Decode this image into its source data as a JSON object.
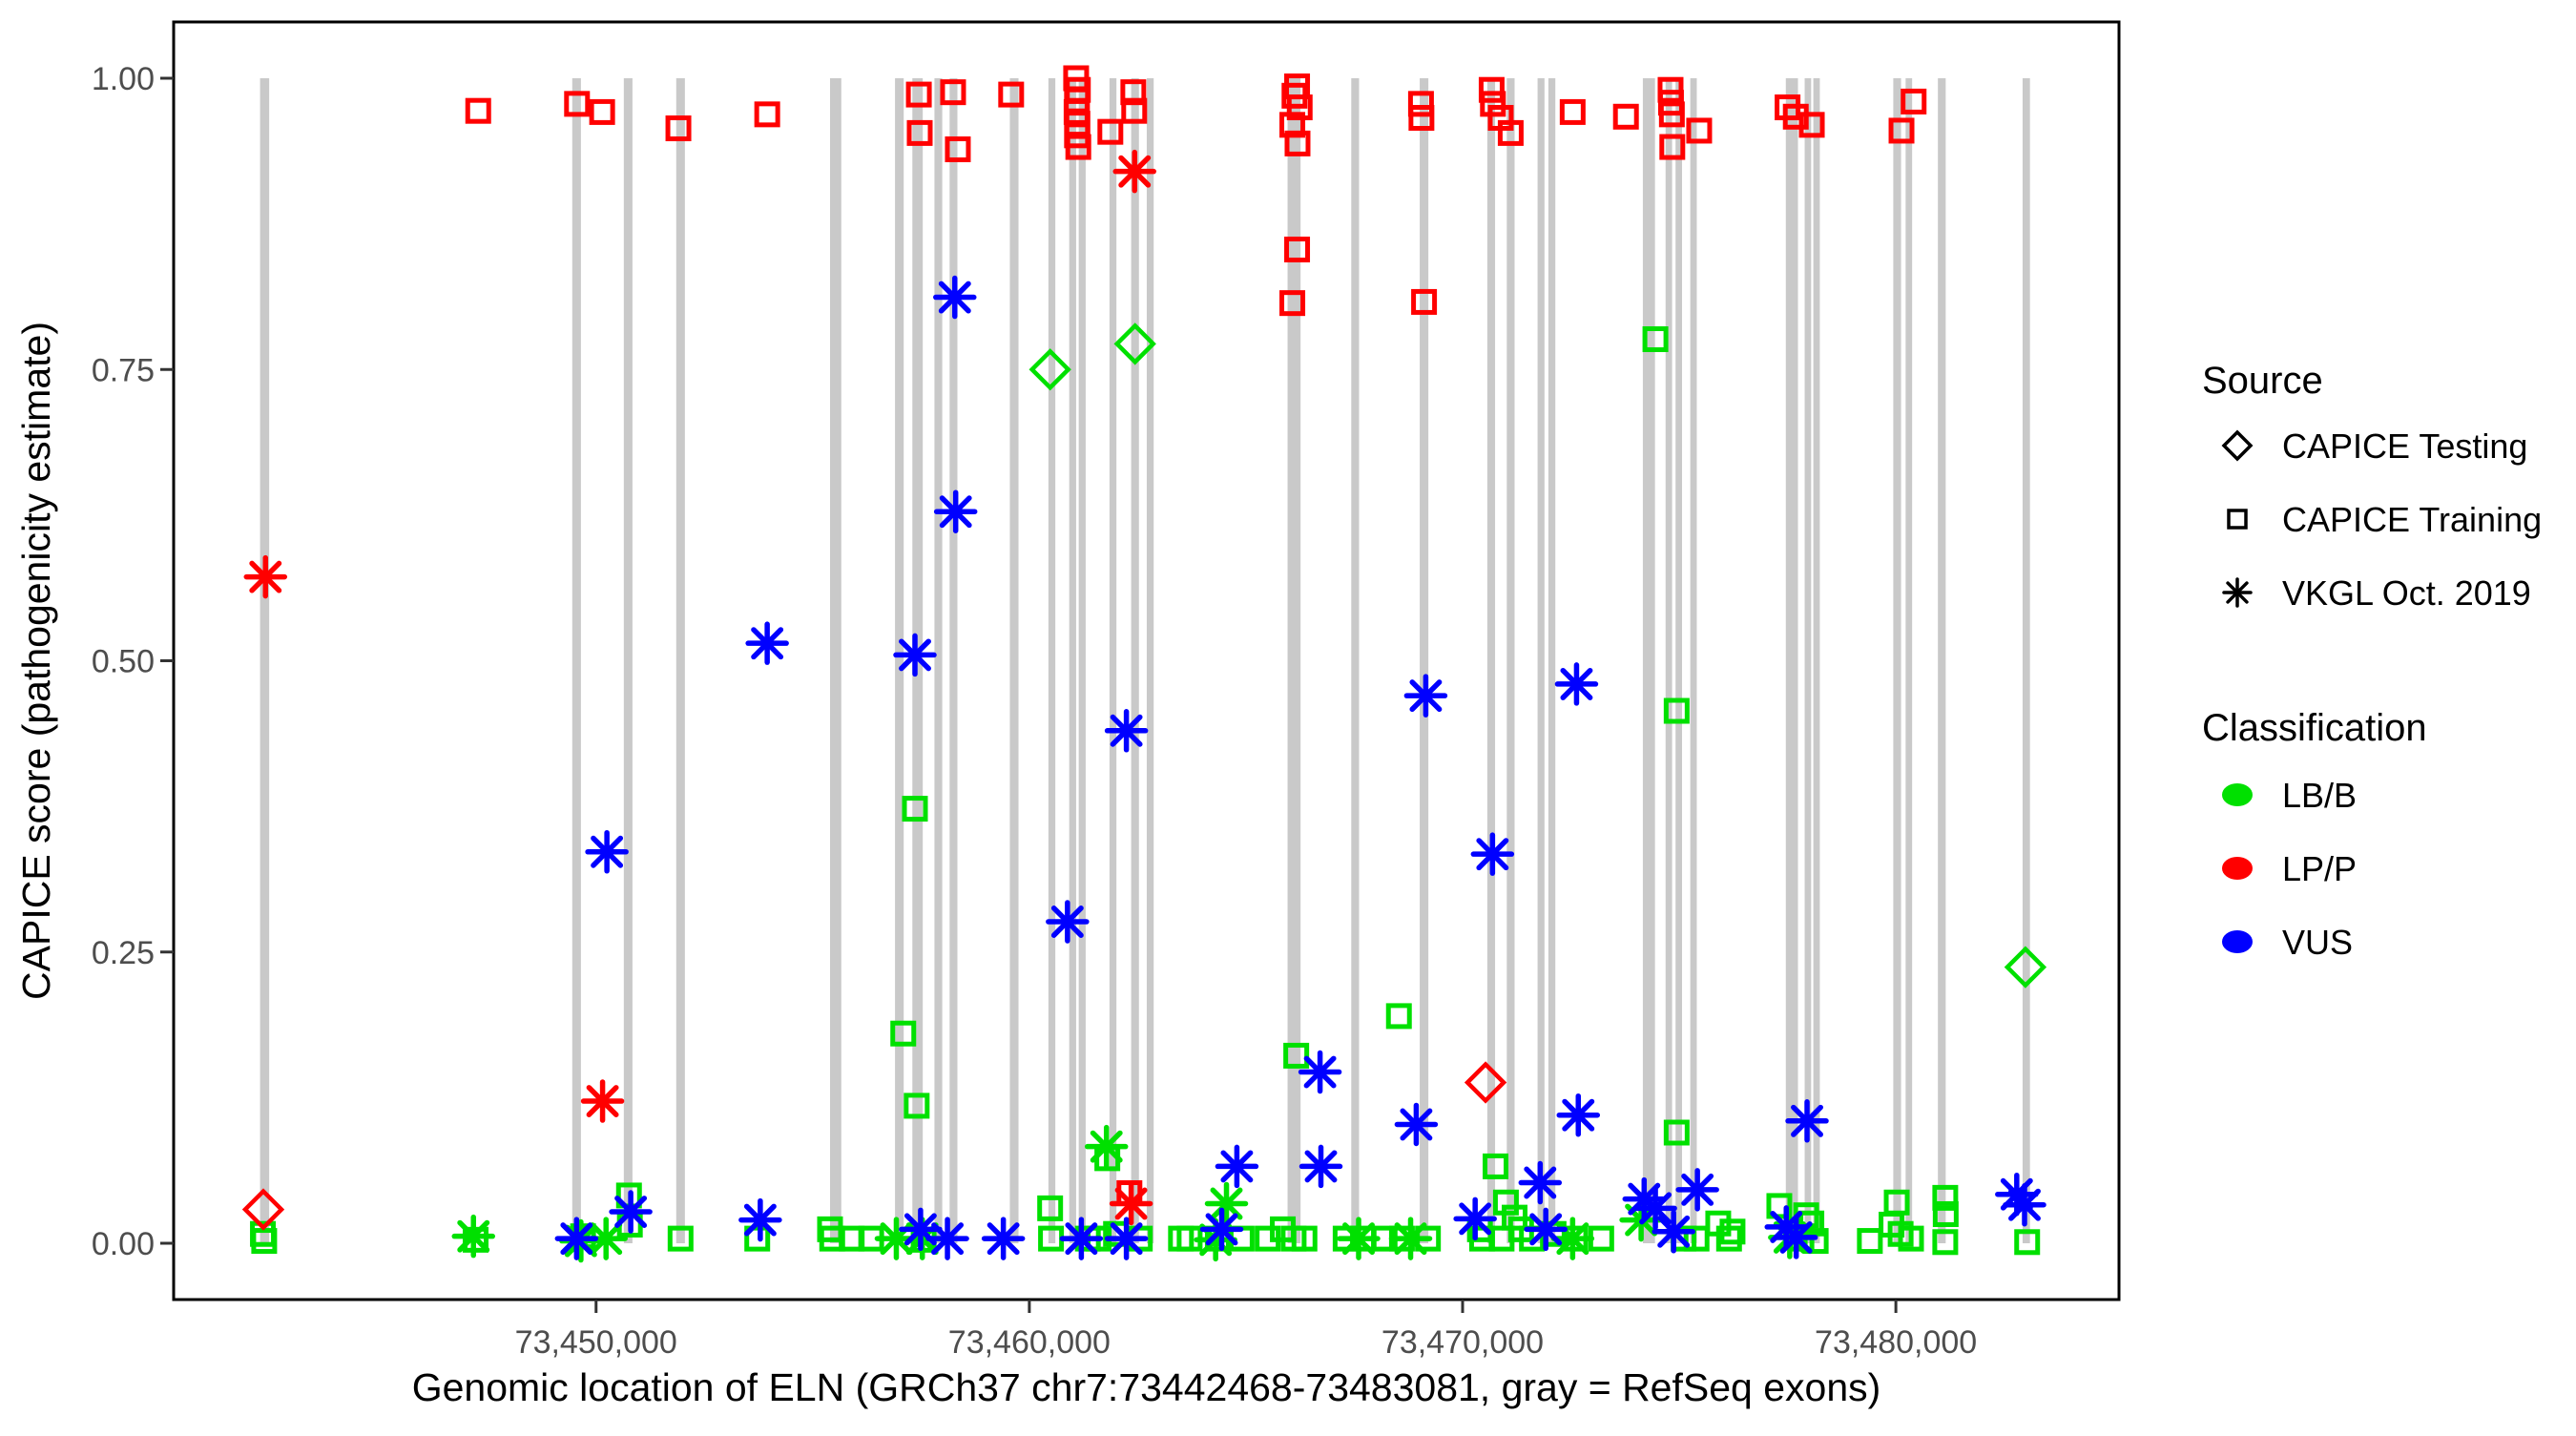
{
  "page": {
    "background": "#FFFFFF"
  },
  "style": {
    "axis_text_color": "#4D4D4D",
    "axis_title_color": "#000000",
    "exon_color": "#C9C9C9",
    "panel_border_color": "#000000",
    "legend_text_color": "#000000"
  },
  "legend": {
    "source": {
      "title": "Source",
      "items": [
        {
          "shape": "diamond",
          "label": "CAPICE Testing"
        },
        {
          "shape": "square",
          "label": "CAPICE Training"
        },
        {
          "shape": "asterisk",
          "label": "VKGL Oct. 2019"
        }
      ]
    },
    "classification": {
      "title": "Classification",
      "items": [
        {
          "label": "LB/B",
          "color": "#00E000"
        },
        {
          "label": "LP/P",
          "color": "#FF0000"
        },
        {
          "label": "VUS",
          "color": "#0000FF"
        }
      ]
    }
  },
  "chart_data": {
    "type": "scatter",
    "title": "",
    "xlabel": "Genomic location of ELN (GRCh37 chr7:73442468-73483081, gray = RefSeq exons)",
    "ylabel": "CAPICE score (pathogenicity estimate)",
    "x_domain": [
      73440250,
      73485150
    ],
    "y_domain": [
      0,
      1
    ],
    "grid": "off",
    "legend_position": "right",
    "x_ticks": [
      {
        "value": 73450000,
        "label": "73,450,000"
      },
      {
        "value": 73460000,
        "label": "73,460,000"
      },
      {
        "value": 73470000,
        "label": "73,470,000"
      },
      {
        "value": 73480000,
        "label": "73,480,000"
      }
    ],
    "y_ticks": [
      {
        "value": 0.0,
        "label": "0.00"
      },
      {
        "value": 0.25,
        "label": "0.25"
      },
      {
        "value": 0.5,
        "label": "0.50"
      },
      {
        "value": 0.75,
        "label": "0.75"
      },
      {
        "value": 1.0,
        "label": "1.00"
      }
    ],
    "source_shapes": {
      "testing": "diamond",
      "training": "square",
      "vkgl": "asterisk"
    },
    "classification_colors": {
      "LB/B": "#00E000",
      "LP/P": "#FF0000",
      "VUS": "#0000FF"
    },
    "exon_note": "gray vertical bars = RefSeq exons, each drawn from score 0 to score 1",
    "exon_format": [
      "genomic_position_center",
      "width_bp"
    ],
    "exons": [
      [
        73442350,
        210
      ],
      [
        73449550,
        200
      ],
      [
        73450740,
        200
      ],
      [
        73451950,
        200
      ],
      [
        73455530,
        260
      ],
      [
        73457000,
        200
      ],
      [
        73457420,
        240
      ],
      [
        73457900,
        180
      ],
      [
        73458250,
        180
      ],
      [
        73459650,
        200
      ],
      [
        73460520,
        160
      ],
      [
        73461000,
        160
      ],
      [
        73461220,
        160
      ],
      [
        73461930,
        160
      ],
      [
        73462440,
        180
      ],
      [
        73462790,
        160
      ],
      [
        73466110,
        300
      ],
      [
        73467520,
        180
      ],
      [
        73469110,
        200
      ],
      [
        73470660,
        180
      ],
      [
        73471110,
        180
      ],
      [
        73471810,
        160
      ],
      [
        73472060,
        160
      ],
      [
        73474300,
        280
      ],
      [
        73474760,
        150
      ],
      [
        73474990,
        150
      ],
      [
        73475330,
        150
      ],
      [
        73477600,
        280
      ],
      [
        73477970,
        150
      ],
      [
        73478170,
        150
      ],
      [
        73480030,
        180
      ],
      [
        73480300,
        150
      ],
      [
        73481060,
        180
      ],
      [
        73483010,
        170
      ]
    ],
    "point_format": [
      "genomic_position",
      "capice_score",
      "source",
      "classification"
    ],
    "points": [
      [
        73447280,
        0.972,
        "training",
        "LP/P"
      ],
      [
        73449560,
        0.978,
        "training",
        "LP/P"
      ],
      [
        73450140,
        0.971,
        "training",
        "LP/P"
      ],
      [
        73451900,
        0.957,
        "training",
        "LP/P"
      ],
      [
        73453950,
        0.969,
        "training",
        "LP/P"
      ],
      [
        73457450,
        0.986,
        "training",
        "LP/P"
      ],
      [
        73457470,
        0.953,
        "training",
        "LP/P"
      ],
      [
        73458240,
        0.988,
        "training",
        "LP/P"
      ],
      [
        73458350,
        0.939,
        "training",
        "LP/P"
      ],
      [
        73459580,
        0.986,
        "training",
        "LP/P"
      ],
      [
        73461080,
        1.0,
        "training",
        "LP/P"
      ],
      [
        73461120,
        0.99,
        "training",
        "LP/P"
      ],
      [
        73461100,
        0.981,
        "training",
        "LP/P"
      ],
      [
        73461090,
        0.971,
        "training",
        "LP/P"
      ],
      [
        73461110,
        0.961,
        "training",
        "LP/P"
      ],
      [
        73461100,
        0.951,
        "training",
        "LP/P"
      ],
      [
        73461130,
        0.941,
        "training",
        "LP/P"
      ],
      [
        73461870,
        0.954,
        "training",
        "LP/P"
      ],
      [
        73462400,
        0.988,
        "training",
        "LP/P"
      ],
      [
        73462420,
        0.972,
        "training",
        "LP/P"
      ],
      [
        73466180,
        0.993,
        "training",
        "LP/P"
      ],
      [
        73466120,
        0.985,
        "training",
        "LP/P"
      ],
      [
        73466240,
        0.975,
        "training",
        "LP/P"
      ],
      [
        73466070,
        0.96,
        "training",
        "LP/P"
      ],
      [
        73466190,
        0.944,
        "training",
        "LP/P"
      ],
      [
        73466180,
        0.853,
        "training",
        "LP/P"
      ],
      [
        73466070,
        0.807,
        "training",
        "LP/P"
      ],
      [
        73469040,
        0.978,
        "training",
        "LP/P"
      ],
      [
        73469050,
        0.966,
        "training",
        "LP/P"
      ],
      [
        73469110,
        0.808,
        "training",
        "LP/P"
      ],
      [
        73470670,
        0.99,
        "training",
        "LP/P"
      ],
      [
        73470700,
        0.978,
        "training",
        "LP/P"
      ],
      [
        73470880,
        0.966,
        "training",
        "LP/P"
      ],
      [
        73471110,
        0.953,
        "training",
        "LP/P"
      ],
      [
        73472540,
        0.971,
        "training",
        "LP/P"
      ],
      [
        73474800,
        0.99,
        "training",
        "LP/P"
      ],
      [
        73474810,
        0.979,
        "training",
        "LP/P"
      ],
      [
        73474830,
        0.969,
        "training",
        "LP/P"
      ],
      [
        73473770,
        0.967,
        "training",
        "LP/P"
      ],
      [
        73474840,
        0.941,
        "training",
        "LP/P"
      ],
      [
        73475460,
        0.955,
        "training",
        "LP/P"
      ],
      [
        73477500,
        0.975,
        "training",
        "LP/P"
      ],
      [
        73477690,
        0.967,
        "training",
        "LP/P"
      ],
      [
        73478060,
        0.96,
        "training",
        "LP/P"
      ],
      [
        73480410,
        0.98,
        "training",
        "LP/P"
      ],
      [
        73480130,
        0.955,
        "training",
        "LP/P"
      ],
      [
        73462310,
        0.043,
        "training",
        "LP/P"
      ],
      [
        73442370,
        0.572,
        "vkgl",
        "LP/P"
      ],
      [
        73450150,
        0.122,
        "vkgl",
        "LP/P"
      ],
      [
        73462430,
        0.92,
        "vkgl",
        "LP/P"
      ],
      [
        73462350,
        0.034,
        "vkgl",
        "LP/P"
      ],
      [
        73470530,
        0.138,
        "testing",
        "LP/P"
      ],
      [
        73442320,
        0.029,
        "testing",
        "LP/P"
      ],
      [
        73458280,
        0.812,
        "vkgl",
        "VUS"
      ],
      [
        73458300,
        0.628,
        "vkgl",
        "VUS"
      ],
      [
        73453950,
        0.515,
        "vkgl",
        "VUS"
      ],
      [
        73457360,
        0.505,
        "vkgl",
        "VUS"
      ],
      [
        73450250,
        0.336,
        "vkgl",
        "VUS"
      ],
      [
        73460880,
        0.276,
        "vkgl",
        "VUS"
      ],
      [
        73462240,
        0.44,
        "vkgl",
        "VUS"
      ],
      [
        73469150,
        0.47,
        "vkgl",
        "VUS"
      ],
      [
        73472630,
        0.48,
        "vkgl",
        "VUS"
      ],
      [
        73470690,
        0.334,
        "vkgl",
        "VUS"
      ],
      [
        73466710,
        0.147,
        "vkgl",
        "VUS"
      ],
      [
        73468930,
        0.102,
        "vkgl",
        "VUS"
      ],
      [
        73472670,
        0.11,
        "vkgl",
        "VUS"
      ],
      [
        73464790,
        0.066,
        "vkgl",
        "VUS"
      ],
      [
        73466730,
        0.066,
        "vkgl",
        "VUS"
      ],
      [
        73471790,
        0.052,
        "vkgl",
        "VUS"
      ],
      [
        73470290,
        0.021,
        "vkgl",
        "VUS"
      ],
      [
        73474190,
        0.038,
        "vkgl",
        "VUS"
      ],
      [
        73474450,
        0.03,
        "vkgl",
        "VUS"
      ],
      [
        73475420,
        0.046,
        "vkgl",
        "VUS"
      ],
      [
        73477950,
        0.105,
        "vkgl",
        "VUS"
      ],
      [
        73477470,
        0.014,
        "vkgl",
        "VUS"
      ],
      [
        73482790,
        0.042,
        "vkgl",
        "VUS"
      ],
      [
        73482970,
        0.033,
        "vkgl",
        "VUS"
      ],
      [
        73449550,
        0.004,
        "vkgl",
        "VUS"
      ],
      [
        73450800,
        0.027,
        "vkgl",
        "VUS"
      ],
      [
        73453790,
        0.02,
        "vkgl",
        "VUS"
      ],
      [
        73457490,
        0.012,
        "vkgl",
        "VUS"
      ],
      [
        73458110,
        0.004,
        "vkgl",
        "VUS"
      ],
      [
        73459400,
        0.004,
        "vkgl",
        "VUS"
      ],
      [
        73461200,
        0.004,
        "vkgl",
        "VUS"
      ],
      [
        73462240,
        0.004,
        "vkgl",
        "VUS"
      ],
      [
        73464440,
        0.012,
        "vkgl",
        "VUS"
      ],
      [
        73471920,
        0.012,
        "vkgl",
        "VUS"
      ],
      [
        73474870,
        0.01,
        "vkgl",
        "VUS"
      ],
      [
        73477700,
        0.005,
        "vkgl",
        "VUS"
      ],
      [
        73460480,
        0.75,
        "testing",
        "LB/B"
      ],
      [
        73462440,
        0.772,
        "testing",
        "LB/B"
      ],
      [
        73482990,
        0.237,
        "testing",
        "LB/B"
      ],
      [
        73474450,
        0.776,
        "training",
        "LB/B"
      ],
      [
        73474940,
        0.457,
        "training",
        "LB/B"
      ],
      [
        73457360,
        0.373,
        "training",
        "LB/B"
      ],
      [
        73457090,
        0.18,
        "training",
        "LB/B"
      ],
      [
        73457400,
        0.118,
        "training",
        "LB/B"
      ],
      [
        73468530,
        0.195,
        "training",
        "LB/B"
      ],
      [
        73466160,
        0.161,
        "training",
        "LB/B"
      ],
      [
        73474940,
        0.095,
        "training",
        "LB/B"
      ],
      [
        73470760,
        0.066,
        "training",
        "LB/B"
      ],
      [
        73461800,
        0.073,
        "training",
        "LB/B"
      ],
      [
        73450760,
        0.041,
        "training",
        "LB/B"
      ],
      [
        73450780,
        0.016,
        "training",
        "LB/B"
      ],
      [
        73460480,
        0.03,
        "training",
        "LB/B"
      ],
      [
        73477310,
        0.032,
        "training",
        "LB/B"
      ],
      [
        73477930,
        0.024,
        "training",
        "LB/B"
      ],
      [
        73478050,
        0.017,
        "training",
        "LB/B"
      ],
      [
        73479400,
        0.002,
        "training",
        "LB/B"
      ],
      [
        73480020,
        0.035,
        "training",
        "LB/B"
      ],
      [
        73479900,
        0.016,
        "training",
        "LB/B"
      ],
      [
        73480110,
        0.008,
        "training",
        "LB/B"
      ],
      [
        73480350,
        0.004,
        "training",
        "LB/B"
      ],
      [
        73481140,
        0.039,
        "training",
        "LB/B"
      ],
      [
        73481150,
        0.025,
        "training",
        "LB/B"
      ],
      [
        73481140,
        0.001,
        "training",
        "LB/B"
      ],
      [
        73483030,
        0.001,
        "training",
        "LB/B"
      ],
      [
        73475900,
        0.017,
        "training",
        "LB/B"
      ],
      [
        73476150,
        0.004,
        "training",
        "LB/B"
      ],
      [
        73476230,
        0.01,
        "training",
        "LB/B"
      ],
      [
        73471000,
        0.035,
        "training",
        "LB/B"
      ],
      [
        73471200,
        0.022,
        "training",
        "LB/B"
      ],
      [
        73471350,
        0.012,
        "training",
        "LB/B"
      ],
      [
        73442310,
        0.008,
        "training",
        "LB/B"
      ],
      [
        73442340,
        0.002,
        "training",
        "LB/B"
      ],
      [
        73447220,
        0.003,
        "training",
        "LB/B"
      ],
      [
        73449700,
        0.006,
        "training",
        "LB/B"
      ],
      [
        73451950,
        0.004,
        "training",
        "LB/B"
      ],
      [
        73453720,
        0.004,
        "training",
        "LB/B"
      ],
      [
        73455400,
        0.012,
        "training",
        "LB/B"
      ],
      [
        73455450,
        0.004,
        "training",
        "LB/B"
      ],
      [
        73455900,
        0.004,
        "training",
        "LB/B"
      ],
      [
        73456350,
        0.004,
        "training",
        "LB/B"
      ],
      [
        73457560,
        0.003,
        "training",
        "LB/B"
      ],
      [
        73460500,
        0.004,
        "training",
        "LB/B"
      ],
      [
        73461350,
        0.004,
        "training",
        "LB/B"
      ],
      [
        73461600,
        0.004,
        "training",
        "LB/B"
      ],
      [
        73462000,
        0.008,
        "training",
        "LB/B"
      ],
      [
        73462550,
        0.004,
        "training",
        "LB/B"
      ],
      [
        73463500,
        0.004,
        "training",
        "LB/B"
      ],
      [
        73463700,
        0.004,
        "training",
        "LB/B"
      ],
      [
        73464350,
        0.004,
        "training",
        "LB/B"
      ],
      [
        73464900,
        0.004,
        "training",
        "LB/B"
      ],
      [
        73465500,
        0.004,
        "training",
        "LB/B"
      ],
      [
        73465850,
        0.012,
        "training",
        "LB/B"
      ],
      [
        73466100,
        0.004,
        "training",
        "LB/B"
      ],
      [
        73466350,
        0.004,
        "training",
        "LB/B"
      ],
      [
        73467300,
        0.004,
        "training",
        "LB/B"
      ],
      [
        73467700,
        0.004,
        "training",
        "LB/B"
      ],
      [
        73468200,
        0.004,
        "training",
        "LB/B"
      ],
      [
        73468600,
        0.004,
        "training",
        "LB/B"
      ],
      [
        73469200,
        0.004,
        "training",
        "LB/B"
      ],
      [
        73470400,
        0.012,
        "training",
        "LB/B"
      ],
      [
        73470450,
        0.004,
        "training",
        "LB/B"
      ],
      [
        73470900,
        0.004,
        "training",
        "LB/B"
      ],
      [
        73471600,
        0.004,
        "training",
        "LB/B"
      ],
      [
        73472100,
        0.008,
        "training",
        "LB/B"
      ],
      [
        73472600,
        0.004,
        "training",
        "LB/B"
      ],
      [
        73473200,
        0.004,
        "training",
        "LB/B"
      ],
      [
        73475100,
        0.004,
        "training",
        "LB/B"
      ],
      [
        73475400,
        0.004,
        "training",
        "LB/B"
      ],
      [
        73477820,
        0.004,
        "training",
        "LB/B"
      ],
      [
        73478150,
        0.002,
        "training",
        "LB/B"
      ],
      [
        73461780,
        0.083,
        "vkgl",
        "LB/B"
      ],
      [
        73464550,
        0.034,
        "vkgl",
        "LB/B"
      ],
      [
        73447170,
        0.006,
        "vkgl",
        "LB/B"
      ],
      [
        73450230,
        0.004,
        "vkgl",
        "LB/B"
      ],
      [
        73449650,
        0.002,
        "vkgl",
        "LB/B"
      ],
      [
        73456930,
        0.004,
        "vkgl",
        "LB/B"
      ],
      [
        73457530,
        0.004,
        "vkgl",
        "LB/B"
      ],
      [
        73467600,
        0.004,
        "vkgl",
        "LB/B"
      ],
      [
        73468800,
        0.004,
        "vkgl",
        "LB/B"
      ],
      [
        73472540,
        0.004,
        "vkgl",
        "LB/B"
      ],
      [
        73474120,
        0.02,
        "vkgl",
        "LB/B"
      ],
      [
        73477550,
        0.005,
        "vkgl",
        "LB/B"
      ],
      [
        73464300,
        0.003,
        "vkgl",
        "LB/B"
      ]
    ]
  }
}
